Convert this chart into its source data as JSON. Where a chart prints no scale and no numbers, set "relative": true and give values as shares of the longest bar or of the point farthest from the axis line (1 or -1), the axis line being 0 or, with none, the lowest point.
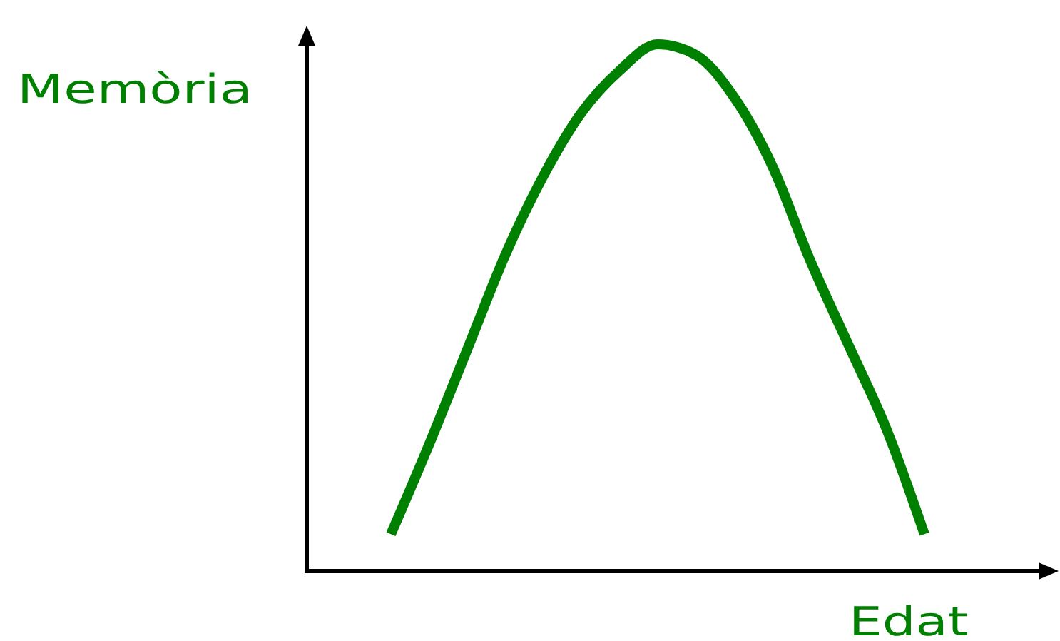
{
  "chart_data": {
    "type": "line",
    "xlabel": "Edat",
    "ylabel": "Memòria",
    "relative": true,
    "categories": [
      null,
      null,
      null,
      null,
      null,
      null,
      null,
      null,
      null,
      null,
      null,
      null,
      null,
      null,
      null
    ],
    "series": [
      {
        "color": "#008000",
        "values": [
          0.07,
          0.24,
          0.42,
          0.6,
          0.75,
          0.87,
          0.95,
          1,
          0.98,
          0.9,
          0.77,
          0.59,
          0.43,
          0.27,
          0.07
        ]
      }
    ]
  }
}
